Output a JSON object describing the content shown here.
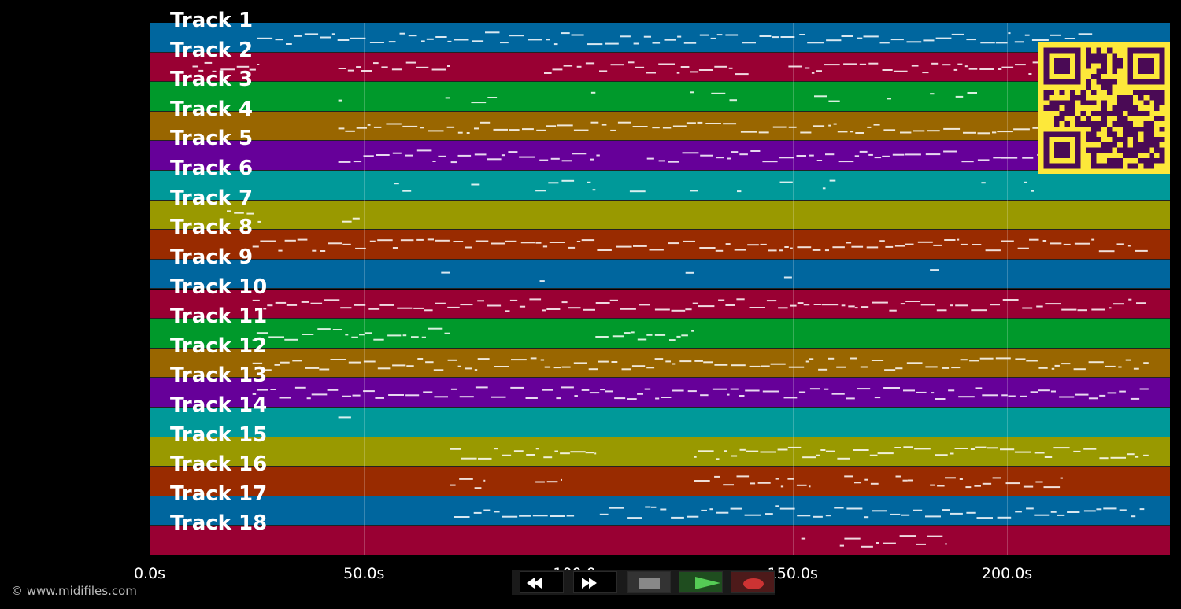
{
  "tracks": [
    {
      "label": "Track 1",
      "color": "#00669e"
    },
    {
      "label": "Track 2",
      "color": "#990033"
    },
    {
      "label": "Track 3",
      "color": "#00992b"
    },
    {
      "label": "Track 4",
      "color": "#996600"
    },
    {
      "label": "Track 5",
      "color": "#660099"
    },
    {
      "label": "Track 6",
      "color": "#009999"
    },
    {
      "label": "Track 7",
      "color": "#999900"
    },
    {
      "label": "Track 8",
      "color": "#992b00"
    },
    {
      "label": "Track 9",
      "color": "#00669e"
    },
    {
      "label": "Track 10",
      "color": "#990033"
    },
    {
      "label": "Track 11",
      "color": "#00992b"
    },
    {
      "label": "Track 12",
      "color": "#996600"
    },
    {
      "label": "Track 13",
      "color": "#660099"
    },
    {
      "label": "Track 14",
      "color": "#009999"
    },
    {
      "label": "Track 15",
      "color": "#999900"
    },
    {
      "label": "Track 16",
      "color": "#992b00"
    },
    {
      "label": "Track 17",
      "color": "#00669e"
    },
    {
      "label": "Track 18",
      "color": "#990033"
    }
  ],
  "timeline": {
    "ticks": [
      "0.0s",
      "50.0s",
      "100.0s",
      "150.0s",
      "200.0s"
    ],
    "tick_seconds": [
      0,
      50,
      100,
      150,
      200
    ],
    "range_seconds": [
      0,
      238
    ]
  },
  "copyright": "© www.midifiles.com",
  "transport": {
    "buttons": [
      {
        "name": "rewind-button",
        "icon": "rewind-icon"
      },
      {
        "name": "fast-forward-button",
        "icon": "fast-forward-icon"
      },
      {
        "name": "stop-button",
        "icon": "stop-icon"
      },
      {
        "name": "play-button",
        "icon": "play-icon"
      },
      {
        "name": "record-button",
        "icon": "record-icon"
      }
    ],
    "colors": {
      "rewind": "#ffffff",
      "stop": "#888888",
      "play": "#55cc55",
      "play_bg": "#1f4d1f",
      "record": "#cc3333",
      "record_bg": "#4d1a1a"
    }
  },
  "qr": {
    "fg": "#4a0a55",
    "bg": "#fde83a"
  },
  "activity": [
    [
      [
        25,
        220
      ]
    ],
    [
      [
        10,
        26
      ],
      [
        44,
        70
      ],
      [
        92,
        140
      ],
      [
        149,
        234
      ]
    ],
    [
      [
        44,
        45
      ],
      [
        69,
        70
      ],
      [
        75,
        81
      ],
      [
        103,
        104
      ],
      [
        126,
        127
      ],
      [
        131,
        137
      ],
      [
        155,
        161
      ],
      [
        172,
        173
      ],
      [
        182,
        183
      ],
      [
        188,
        193
      ]
    ],
    [
      [
        44,
        233
      ]
    ],
    [
      [
        44,
        105
      ],
      [
        116,
        233
      ]
    ],
    [
      [
        57,
        61
      ],
      [
        75,
        77
      ],
      [
        90,
        99
      ],
      [
        102,
        104
      ],
      [
        112,
        116
      ],
      [
        126,
        128
      ],
      [
        137,
        138
      ],
      [
        147,
        150
      ],
      [
        157,
        160
      ],
      [
        194,
        195
      ],
      [
        204,
        207
      ]
    ],
    [
      [
        18,
        26
      ],
      [
        45,
        49
      ]
    ],
    [
      [
        24,
        233
      ]
    ],
    [
      [
        68,
        70
      ],
      [
        91,
        93
      ],
      [
        125,
        127
      ],
      [
        148,
        150
      ],
      [
        182,
        184
      ]
    ],
    [
      [
        24,
        233
      ]
    ],
    [
      [
        24,
        70
      ],
      [
        104,
        127
      ]
    ],
    [
      [
        24,
        233
      ]
    ],
    [
      [
        24,
        233
      ]
    ],
    [
      [
        44,
        47
      ]
    ],
    [
      [
        70,
        104
      ],
      [
        127,
        233
      ]
    ],
    [
      [
        70,
        78
      ],
      [
        90,
        96
      ],
      [
        127,
        154
      ],
      [
        162,
        170
      ],
      [
        174,
        178
      ],
      [
        182,
        213
      ]
    ],
    [
      [
        71,
        99
      ],
      [
        105,
        232
      ]
    ],
    [
      [
        152,
        153
      ],
      [
        161,
        186
      ]
    ]
  ]
}
